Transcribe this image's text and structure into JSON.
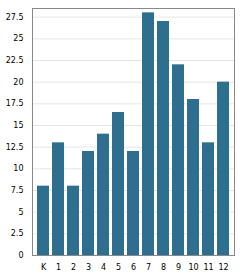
{
  "chart_data": {
    "type": "bar",
    "categories": [
      "K",
      "1",
      "2",
      "3",
      "4",
      "5",
      "6",
      "7",
      "8",
      "9",
      "10",
      "11",
      "12"
    ],
    "values": [
      8,
      13,
      8,
      12,
      14,
      16.5,
      12,
      28,
      27,
      22,
      18,
      13,
      20
    ],
    "color": "#2e6e8e",
    "ylim": [
      0,
      28.5
    ],
    "yticks": [
      0,
      2.5,
      5,
      7.5,
      10,
      12.5,
      15,
      17.5,
      20,
      22.5,
      25,
      27.5
    ],
    "grid": true
  }
}
